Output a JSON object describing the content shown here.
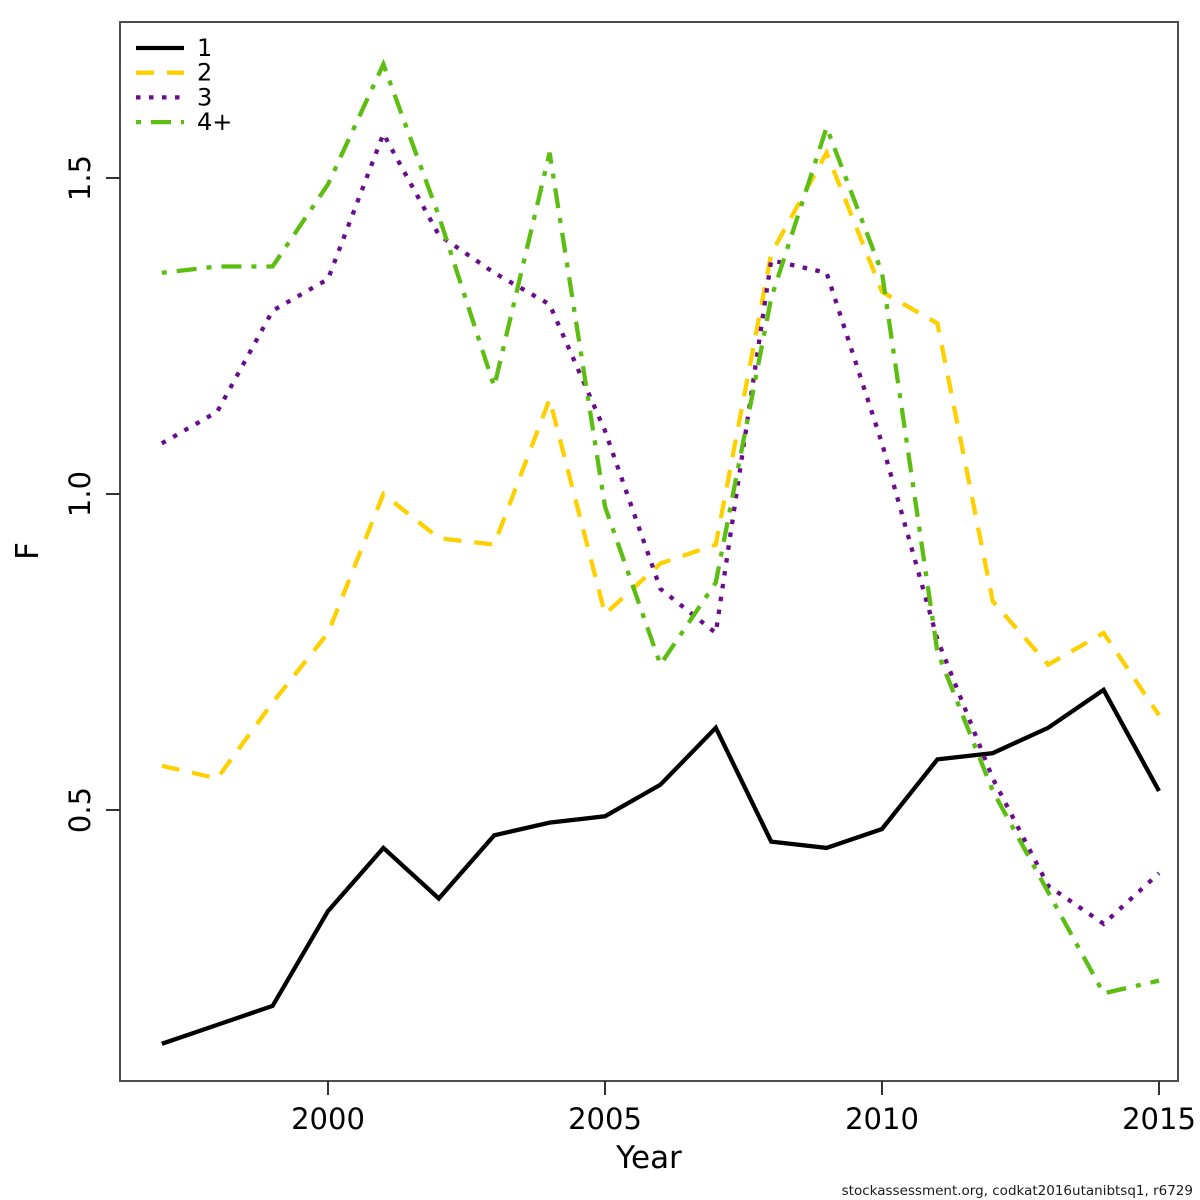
{
  "figure": {
    "background": "#ffffff",
    "box_color": "#4d4d4d",
    "footer": "stockassessment.org, codkat2016utanibtsq1, r6729"
  },
  "axis": {
    "x_label": "Year",
    "y_label": "F",
    "x_ticks": [
      "2000",
      "2005",
      "2010",
      "2015"
    ],
    "y_ticks": [
      "0.5",
      "1.0",
      "1.5"
    ]
  },
  "legend": {
    "position": "top-left",
    "items": [
      "1",
      "2",
      "3",
      "4+"
    ]
  },
  "chart_data": {
    "type": "line",
    "title": "",
    "xlabel": "Year",
    "ylabel": "F",
    "x": [
      1997,
      1998,
      1999,
      2000,
      2001,
      2002,
      2003,
      2004,
      2005,
      2006,
      2007,
      2008,
      2009,
      2010,
      2011,
      2012,
      2013,
      2014,
      2015
    ],
    "xlim": [
      1996.3,
      2015.7
    ],
    "ylim": [
      0.07,
      1.75
    ],
    "grid": false,
    "legend_position": "top-left",
    "series": [
      {
        "name": "1",
        "color": "#000000",
        "linestyle": "solid",
        "values": [
          0.13,
          0.16,
          0.19,
          0.34,
          0.44,
          0.36,
          0.46,
          0.48,
          0.49,
          0.54,
          0.63,
          0.45,
          0.44,
          0.47,
          0.58,
          0.59,
          0.63,
          0.69,
          0.53
        ]
      },
      {
        "name": "2",
        "color": "#ffd000",
        "linestyle": "dashed",
        "values": [
          0.57,
          0.55,
          0.67,
          0.78,
          1.0,
          0.93,
          0.92,
          1.15,
          0.81,
          0.89,
          0.92,
          1.38,
          1.54,
          1.32,
          1.27,
          0.83,
          0.73,
          0.78,
          0.65
        ]
      },
      {
        "name": "3",
        "color": "#6a0d8d",
        "linestyle": "dotted",
        "values": [
          1.08,
          1.13,
          1.29,
          1.34,
          1.57,
          1.41,
          1.35,
          1.3,
          1.1,
          0.85,
          0.78,
          1.37,
          1.35,
          1.08,
          0.77,
          0.55,
          0.38,
          0.32,
          0.4
        ]
      },
      {
        "name": "4+",
        "color": "#5dbe12",
        "linestyle": "dashdot",
        "values": [
          1.35,
          1.36,
          1.36,
          1.49,
          1.68,
          1.44,
          1.17,
          1.54,
          0.98,
          0.73,
          0.86,
          1.31,
          1.58,
          1.35,
          0.75,
          0.53,
          0.37,
          0.21,
          0.23
        ]
      }
    ]
  }
}
